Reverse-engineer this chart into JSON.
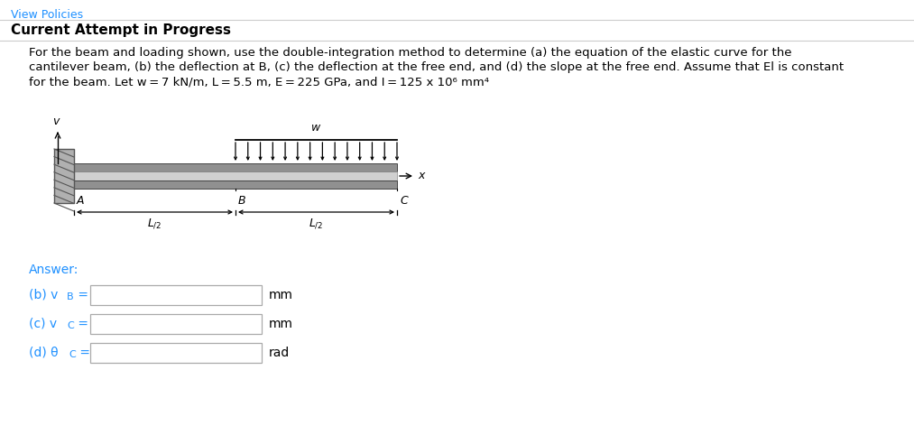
{
  "bg_color": "#ffffff",
  "title_text": "Current Attempt in Progress",
  "title_color": "#000000",
  "header_text": "View Policies",
  "header_color": "#1e90ff",
  "line1": "For the beam and loading shown, use the double-integration method to determine (a) the equation of the elastic curve for the",
  "line2": "cantilever beam, (b) the deflection at B, (c) the deflection at the free end, and (d) the slope at the free end. Assume that El is constant",
  "line3": "for the beam. Let w = 7 kN/m, L = 5.5 m, E = 225 GPa, and I = 125 x 10⁶ mm⁴",
  "separator_color": "#cccccc",
  "answer_color": "#1e90ff",
  "answer_text": "Answer:",
  "b_label": "(b) v",
  "b_sub": "B",
  "c_label": "(c) v",
  "c_sub": "C",
  "d_label": "(d) θ",
  "d_sub": "C",
  "b_unit": "mm",
  "c_unit": "mm",
  "d_unit": "rad",
  "wall_face_color": "#b0b0b0",
  "wall_edge_color": "#555555",
  "beam_top_color": "#909090",
  "beam_mid_color": "#d0d0d0",
  "beam_bot_color": "#909090",
  "load_color": "#000000",
  "text_color": "#000000",
  "dim_color": "#000000"
}
